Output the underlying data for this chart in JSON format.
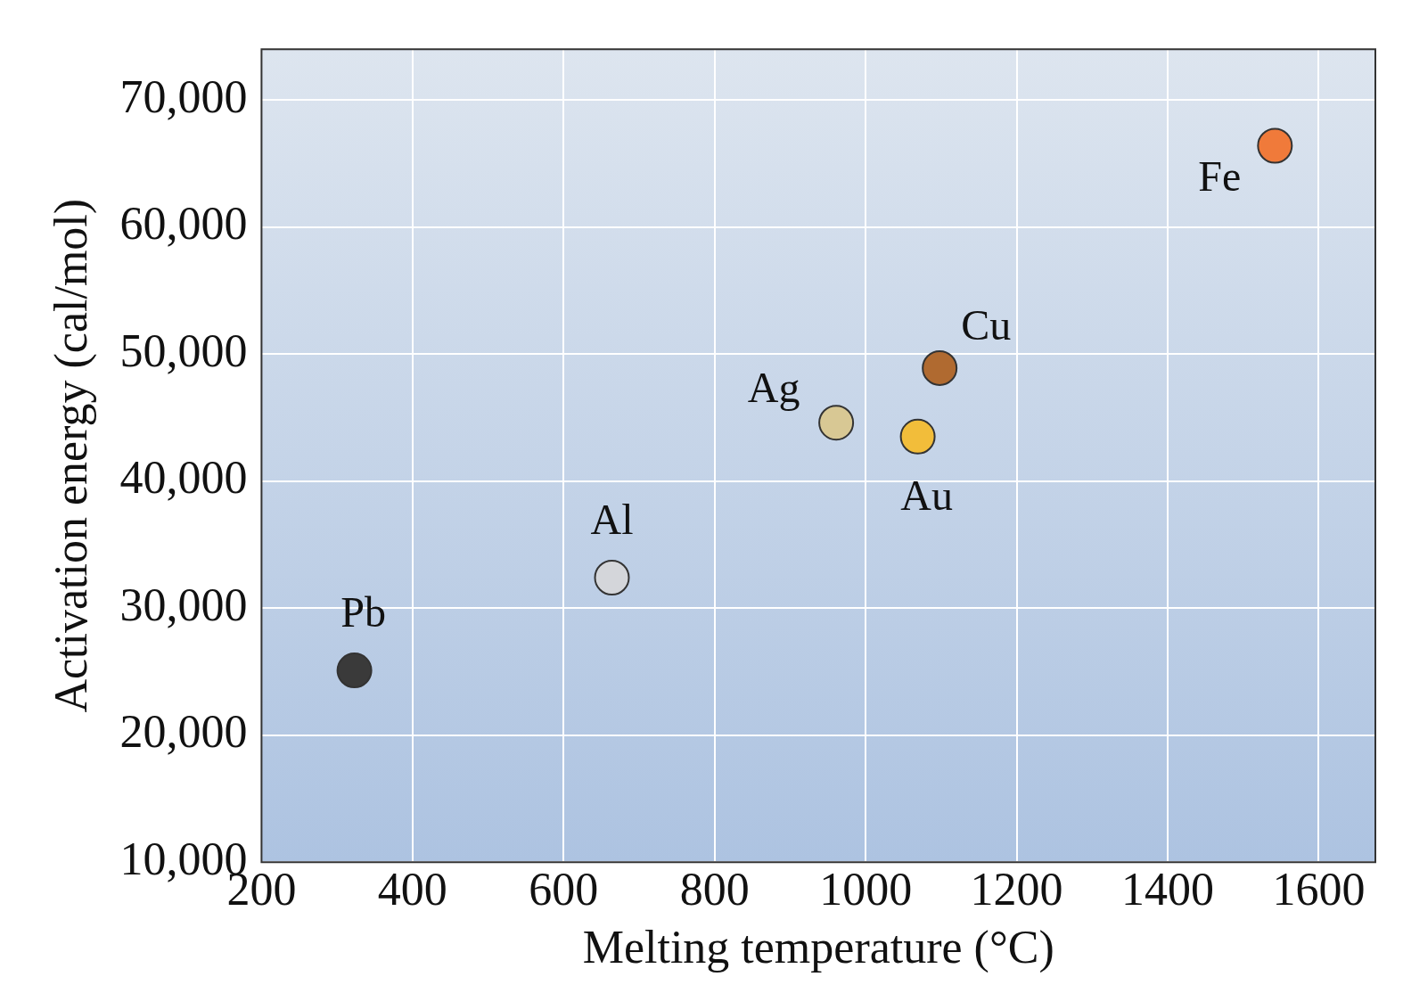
{
  "chart_data": {
    "type": "scatter",
    "xlabel": "Melting temperature (°C)",
    "ylabel": "Activation energy (cal/mol)",
    "xlim": [
      200,
      1675
    ],
    "ylim": [
      10000,
      74000
    ],
    "xticks": [
      200,
      400,
      600,
      800,
      1000,
      1200,
      1400,
      1600
    ],
    "yticks": [
      {
        "value": 10000,
        "label": "10,000"
      },
      {
        "value": 20000,
        "label": "20,000"
      },
      {
        "value": 30000,
        "label": "30,000"
      },
      {
        "value": 40000,
        "label": "40,000"
      },
      {
        "value": 50000,
        "label": "50,000"
      },
      {
        "value": 60000,
        "label": "60,000"
      },
      {
        "value": 70000,
        "label": "70,000"
      }
    ],
    "grid": true,
    "legend": false,
    "marker": "circle",
    "series": [
      {
        "name": "Pb",
        "color": "#3a3a3a",
        "x": [
          323
        ],
        "values": [
          25100
        ]
      },
      {
        "name": "Al",
        "color": "#d4d6da",
        "x": [
          664
        ],
        "values": [
          32400
        ]
      },
      {
        "name": "Ag",
        "color": "#d8c894",
        "x": [
          961
        ],
        "values": [
          44600
        ]
      },
      {
        "name": "Au",
        "color": "#f2bd3a",
        "x": [
          1069
        ],
        "values": [
          43500
        ]
      },
      {
        "name": "Cu",
        "color": "#b06a30",
        "x": [
          1098
        ],
        "values": [
          48900
        ]
      },
      {
        "name": "Fe",
        "color": "#f07a3a",
        "x": [
          1542
        ],
        "values": [
          66400
        ]
      }
    ]
  }
}
